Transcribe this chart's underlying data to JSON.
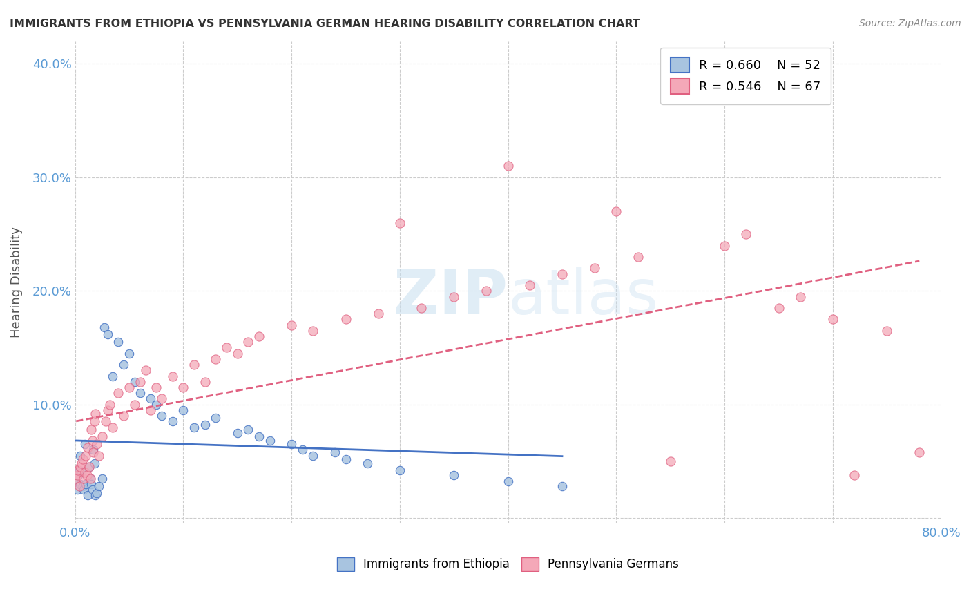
{
  "title": "IMMIGRANTS FROM ETHIOPIA VS PENNSYLVANIA GERMAN HEARING DISABILITY CORRELATION CHART",
  "source": "Source: ZipAtlas.com",
  "ylabel": "Hearing Disability",
  "xlim": [
    0.0,
    0.8
  ],
  "ylim": [
    -0.005,
    0.42
  ],
  "yticks": [
    0.0,
    0.1,
    0.2,
    0.3,
    0.4
  ],
  "ytick_labels": [
    "",
    "10.0%",
    "20.0%",
    "30.0%",
    "40.0%"
  ],
  "legend_r1": "R = 0.660",
  "legend_n1": "N = 52",
  "legend_r2": "R = 0.546",
  "legend_n2": "N = 67",
  "blue_color": "#a8c4e0",
  "pink_color": "#f4a8b8",
  "blue_line_color": "#4472c4",
  "pink_line_color": "#e06080",
  "blue_scatter": [
    [
      0.001,
      0.035
    ],
    [
      0.002,
      0.025
    ],
    [
      0.003,
      0.038
    ],
    [
      0.004,
      0.042
    ],
    [
      0.005,
      0.03
    ],
    [
      0.005,
      0.055
    ],
    [
      0.006,
      0.04
    ],
    [
      0.007,
      0.028
    ],
    [
      0.008,
      0.025
    ],
    [
      0.009,
      0.065
    ],
    [
      0.01,
      0.03
    ],
    [
      0.012,
      0.02
    ],
    [
      0.013,
      0.045
    ],
    [
      0.014,
      0.035
    ],
    [
      0.015,
      0.03
    ],
    [
      0.016,
      0.025
    ],
    [
      0.017,
      0.06
    ],
    [
      0.018,
      0.048
    ],
    [
      0.019,
      0.02
    ],
    [
      0.02,
      0.022
    ],
    [
      0.022,
      0.028
    ],
    [
      0.025,
      0.035
    ],
    [
      0.027,
      0.168
    ],
    [
      0.03,
      0.162
    ],
    [
      0.035,
      0.125
    ],
    [
      0.04,
      0.155
    ],
    [
      0.045,
      0.135
    ],
    [
      0.05,
      0.145
    ],
    [
      0.055,
      0.12
    ],
    [
      0.06,
      0.11
    ],
    [
      0.07,
      0.105
    ],
    [
      0.075,
      0.1
    ],
    [
      0.08,
      0.09
    ],
    [
      0.09,
      0.085
    ],
    [
      0.1,
      0.095
    ],
    [
      0.11,
      0.08
    ],
    [
      0.12,
      0.082
    ],
    [
      0.13,
      0.088
    ],
    [
      0.15,
      0.075
    ],
    [
      0.16,
      0.078
    ],
    [
      0.17,
      0.072
    ],
    [
      0.18,
      0.068
    ],
    [
      0.2,
      0.065
    ],
    [
      0.21,
      0.06
    ],
    [
      0.22,
      0.055
    ],
    [
      0.24,
      0.058
    ],
    [
      0.25,
      0.052
    ],
    [
      0.27,
      0.048
    ],
    [
      0.3,
      0.042
    ],
    [
      0.35,
      0.038
    ],
    [
      0.4,
      0.032
    ],
    [
      0.45,
      0.028
    ]
  ],
  "pink_scatter": [
    [
      0.001,
      0.035
    ],
    [
      0.002,
      0.038
    ],
    [
      0.003,
      0.042
    ],
    [
      0.004,
      0.028
    ],
    [
      0.005,
      0.045
    ],
    [
      0.006,
      0.048
    ],
    [
      0.007,
      0.052
    ],
    [
      0.008,
      0.035
    ],
    [
      0.009,
      0.04
    ],
    [
      0.01,
      0.055
    ],
    [
      0.011,
      0.038
    ],
    [
      0.012,
      0.062
    ],
    [
      0.013,
      0.045
    ],
    [
      0.014,
      0.035
    ],
    [
      0.015,
      0.078
    ],
    [
      0.016,
      0.068
    ],
    [
      0.017,
      0.058
    ],
    [
      0.018,
      0.085
    ],
    [
      0.019,
      0.092
    ],
    [
      0.02,
      0.065
    ],
    [
      0.022,
      0.055
    ],
    [
      0.025,
      0.072
    ],
    [
      0.028,
      0.085
    ],
    [
      0.03,
      0.095
    ],
    [
      0.032,
      0.1
    ],
    [
      0.035,
      0.08
    ],
    [
      0.04,
      0.11
    ],
    [
      0.045,
      0.09
    ],
    [
      0.05,
      0.115
    ],
    [
      0.055,
      0.1
    ],
    [
      0.06,
      0.12
    ],
    [
      0.065,
      0.13
    ],
    [
      0.07,
      0.095
    ],
    [
      0.075,
      0.115
    ],
    [
      0.08,
      0.105
    ],
    [
      0.09,
      0.125
    ],
    [
      0.1,
      0.115
    ],
    [
      0.11,
      0.135
    ],
    [
      0.12,
      0.12
    ],
    [
      0.13,
      0.14
    ],
    [
      0.14,
      0.15
    ],
    [
      0.15,
      0.145
    ],
    [
      0.16,
      0.155
    ],
    [
      0.17,
      0.16
    ],
    [
      0.2,
      0.17
    ],
    [
      0.22,
      0.165
    ],
    [
      0.25,
      0.175
    ],
    [
      0.28,
      0.18
    ],
    [
      0.3,
      0.26
    ],
    [
      0.32,
      0.185
    ],
    [
      0.35,
      0.195
    ],
    [
      0.38,
      0.2
    ],
    [
      0.4,
      0.31
    ],
    [
      0.42,
      0.205
    ],
    [
      0.45,
      0.215
    ],
    [
      0.48,
      0.22
    ],
    [
      0.5,
      0.27
    ],
    [
      0.52,
      0.23
    ],
    [
      0.55,
      0.05
    ],
    [
      0.6,
      0.24
    ],
    [
      0.62,
      0.25
    ],
    [
      0.65,
      0.185
    ],
    [
      0.67,
      0.195
    ],
    [
      0.7,
      0.175
    ],
    [
      0.72,
      0.038
    ],
    [
      0.75,
      0.165
    ],
    [
      0.78,
      0.058
    ]
  ],
  "background_color": "#ffffff",
  "grid_color": "#cccccc"
}
